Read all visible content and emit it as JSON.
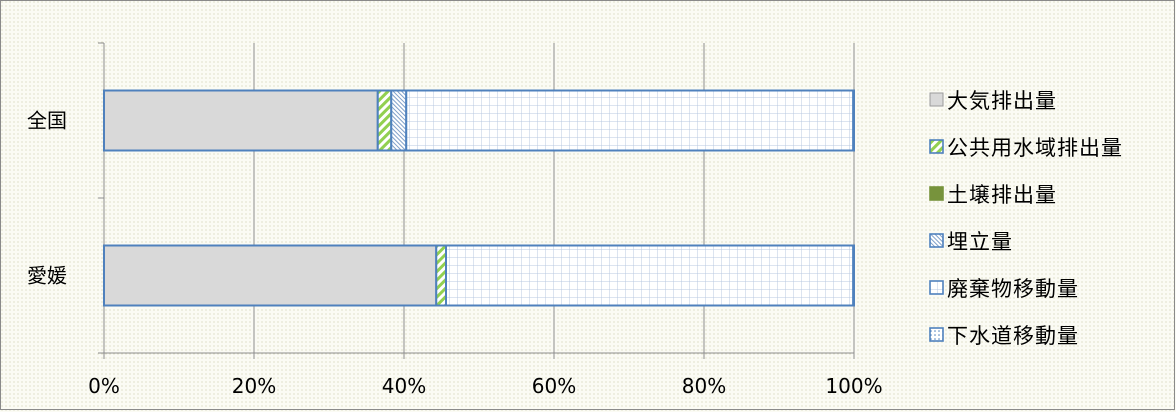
{
  "chart_data": {
    "type": "bar",
    "orientation": "horizontal",
    "stacked": "percent",
    "categories": [
      "全国",
      "愛媛"
    ],
    "series": [
      {
        "name": "大気排出量",
        "values": [
          36.5,
          44.3
        ],
        "color": "#d9d9d9",
        "pattern": "solid"
      },
      {
        "name": "公共用水域排出量",
        "values": [
          1.8,
          1.3
        ],
        "color": "#92d050",
        "pattern": "diagonal"
      },
      {
        "name": "土壌排出量",
        "values": [
          0.0,
          0.0
        ],
        "color": "#77933c",
        "pattern": "solid"
      },
      {
        "name": "埋立量",
        "values": [
          2.0,
          0.0
        ],
        "color": "#4f81bd",
        "pattern": "dense-diagonal"
      },
      {
        "name": "廃棄物移動量",
        "values": [
          59.6,
          54.3
        ],
        "color": "#4f81bd",
        "pattern": "grid"
      },
      {
        "name": "下水道移動量",
        "values": [
          0.1,
          0.1
        ],
        "color": "#4f81bd",
        "pattern": "dots"
      }
    ],
    "xaxis": {
      "ticks": [
        "0%",
        "20%",
        "40%",
        "60%",
        "80%",
        "100%"
      ],
      "range": [
        0,
        100
      ]
    },
    "grid": true,
    "legend": "right",
    "title": "",
    "xlabel": "",
    "ylabel": ""
  }
}
